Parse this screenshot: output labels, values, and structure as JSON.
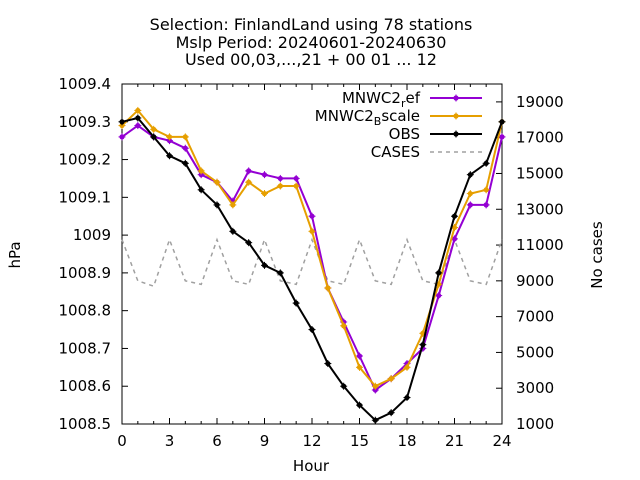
{
  "chart_data": {
    "type": "line",
    "title": [
      "Selection: FinlandLand using    78 stations",
      "Mslp   Period: 20240601-20240630",
      "Used 00,03,...,21 + 00 01 ... 12"
    ],
    "xlabel": "Hour",
    "ylabel": "hPa",
    "y2label": "No cases",
    "xlim": [
      0,
      24
    ],
    "ylim": [
      1008.5,
      1009.4
    ],
    "y2lim": [
      1000,
      20000
    ],
    "xticks": [
      "0",
      "3",
      "6",
      "9",
      "12",
      "15",
      "18",
      "21",
      "24"
    ],
    "yticks": [
      "1008.5",
      "1008.6",
      "1008.7",
      "1008.8",
      "1008.9",
      "1009",
      "1009.1",
      "1009.2",
      "1009.3",
      "1009.4"
    ],
    "y2ticks": [
      "1000",
      "3000",
      "5000",
      "7000",
      "9000",
      "11000",
      "13000",
      "15000",
      "17000",
      "19000"
    ],
    "legend_position": "top-right",
    "x": [
      0,
      1,
      2,
      3,
      4,
      5,
      6,
      7,
      8,
      9,
      10,
      11,
      12,
      13,
      14,
      15,
      16,
      17,
      18,
      19,
      20,
      21,
      22,
      23,
      24
    ],
    "series": [
      {
        "name": "MNWC2_ref",
        "legend_main": "MNWC2",
        "legend_sub": "r",
        "legend_tail": "ef",
        "color": "#9400d3",
        "axis": "y",
        "values": [
          1009.26,
          1009.29,
          1009.26,
          1009.25,
          1009.23,
          1009.16,
          1009.14,
          1009.09,
          1009.17,
          1009.16,
          1009.15,
          1009.15,
          1009.05,
          1008.86,
          1008.77,
          1008.68,
          1008.59,
          1008.62,
          1008.66,
          1008.7,
          1008.84,
          1008.99,
          1009.08,
          1009.08,
          1009.26
        ]
      },
      {
        "name": "MNWC2_Bscale",
        "legend_main": "MNWC2",
        "legend_sub": "B",
        "legend_tail": "scale",
        "color": "#e69f00",
        "axis": "y",
        "values": [
          1009.29,
          1009.33,
          1009.28,
          1009.26,
          1009.26,
          1009.17,
          1009.14,
          1009.08,
          1009.14,
          1009.11,
          1009.13,
          1009.13,
          1009.01,
          1008.86,
          1008.76,
          1008.65,
          1008.6,
          1008.62,
          1008.65,
          1008.74,
          1008.87,
          1009.02,
          1009.11,
          1009.12,
          1009.3
        ]
      },
      {
        "name": "OBS",
        "legend_main": "OBS",
        "legend_sub": "",
        "legend_tail": "",
        "color": "#000000",
        "axis": "y",
        "values": [
          1009.3,
          1009.31,
          1009.26,
          1009.21,
          1009.19,
          1009.12,
          1009.08,
          1009.01,
          1008.98,
          1008.92,
          1008.9,
          1008.82,
          1008.75,
          1008.66,
          1008.6,
          1008.55,
          1008.51,
          1008.53,
          1008.57,
          1008.71,
          1008.9,
          1009.05,
          1009.16,
          1009.19,
          1009.3
        ]
      },
      {
        "name": "CASES",
        "legend_main": "CASES",
        "legend_sub": "",
        "legend_tail": "",
        "color": "#a0a0a0",
        "axis": "y2",
        "dashed": true,
        "values": [
          11300,
          9000,
          8700,
          11300,
          9000,
          8800,
          11300,
          9000,
          8800,
          11300,
          9000,
          8800,
          11300,
          9000,
          8800,
          11300,
          9000,
          8800,
          11300,
          9000,
          8800,
          11300,
          9000,
          8800,
          11300
        ]
      }
    ]
  }
}
